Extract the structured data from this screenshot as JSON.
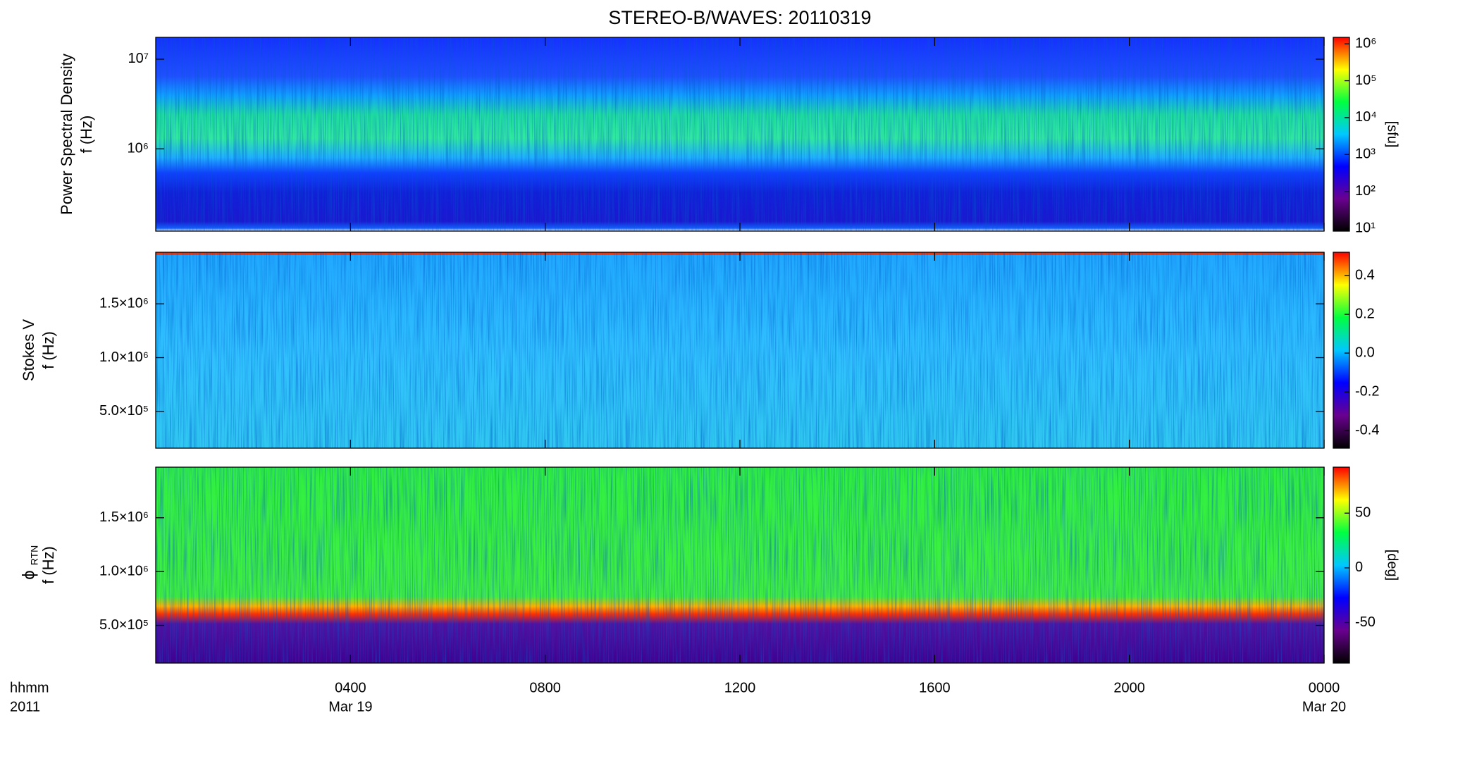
{
  "title": "STEREO-B/WAVES: 20110319",
  "x_axis": {
    "labels": [
      "hhmm",
      "2011"
    ],
    "xlim": [
      0,
      24
    ],
    "xticks": [
      {
        "value": 4,
        "label": "0400"
      },
      {
        "value": 8,
        "label": "0800"
      },
      {
        "value": 12,
        "label": "1200"
      },
      {
        "value": 16,
        "label": "1600"
      },
      {
        "value": 20,
        "label": "2000"
      },
      {
        "value": 24,
        "label": "0000"
      }
    ],
    "date_labels": [
      {
        "value": 4,
        "label": "Mar 19"
      },
      {
        "value": 24,
        "label": "Mar 20"
      }
    ]
  },
  "chart_data": [
    {
      "type": "spectrogram",
      "y_label": "Power Spectral Density",
      "y_unit_label": "f (Hz)",
      "log_y": true,
      "ylim": [
        121000,
        17500000
      ],
      "yticks": [
        {
          "value": 1000000,
          "label": "10⁶"
        },
        {
          "value": 10000000,
          "label": "10⁷"
        }
      ],
      "colormap": [
        "#000000",
        "#6a0090",
        "#0000ff",
        "#00c8ff",
        "#00ff40",
        "#ffff00",
        "#ff0000"
      ],
      "colorbar": {
        "label": "[sfu]",
        "log": true,
        "lim": [
          8.4,
          1500000
        ],
        "ticks": [
          {
            "value": 10,
            "label": "10¹"
          },
          {
            "value": 100,
            "label": "10²"
          },
          {
            "value": 1000,
            "label": "10³"
          },
          {
            "value": 10000,
            "label": "10⁴"
          },
          {
            "value": 100000,
            "label": "10⁵"
          },
          {
            "value": 1000000,
            "label": "10⁶"
          }
        ]
      }
    },
    {
      "type": "spectrogram",
      "y_label": "Stokes V",
      "y_unit_label": "f (Hz)",
      "log_y": false,
      "ylim": [
        158000,
        1980000
      ],
      "yticks": [
        {
          "value": 500000,
          "label": "5.0×10⁵"
        },
        {
          "value": 1000000,
          "label": "1.0×10⁶"
        },
        {
          "value": 1500000,
          "label": "1.5×10⁶"
        }
      ],
      "colormap": [
        "#000000",
        "#6a0090",
        "#0000ff",
        "#00c8ff",
        "#00ff40",
        "#ffff00",
        "#ff0000"
      ],
      "colorbar": {
        "log": false,
        "lim": [
          -0.49,
          0.52
        ],
        "ticks": [
          -0.4,
          -0.2,
          {
            "value": 0,
            "label": "0.0"
          },
          0.2,
          0.4
        ]
      }
    },
    {
      "type": "spectrogram",
      "y_label": "ϕ",
      "y_label_sub": "RTN",
      "y_unit_label": "f (Hz)",
      "log_y": false,
      "ylim": [
        150000,
        1970000
      ],
      "yticks": [
        {
          "value": 500000,
          "label": "5.0×10⁵"
        },
        {
          "value": 1000000,
          "label": "1.0×10⁶"
        },
        {
          "value": 1500000,
          "label": "1.5×10⁶"
        }
      ],
      "colormap": [
        "#000000",
        "#6a0090",
        "#0000ff",
        "#00c8ff",
        "#00ff40",
        "#ffff00",
        "#ff0000"
      ],
      "colorbar": {
        "label": "[deg]",
        "log": false,
        "lim": [
          -87,
          92
        ],
        "ticks": [
          -50,
          0,
          50
        ]
      }
    }
  ]
}
